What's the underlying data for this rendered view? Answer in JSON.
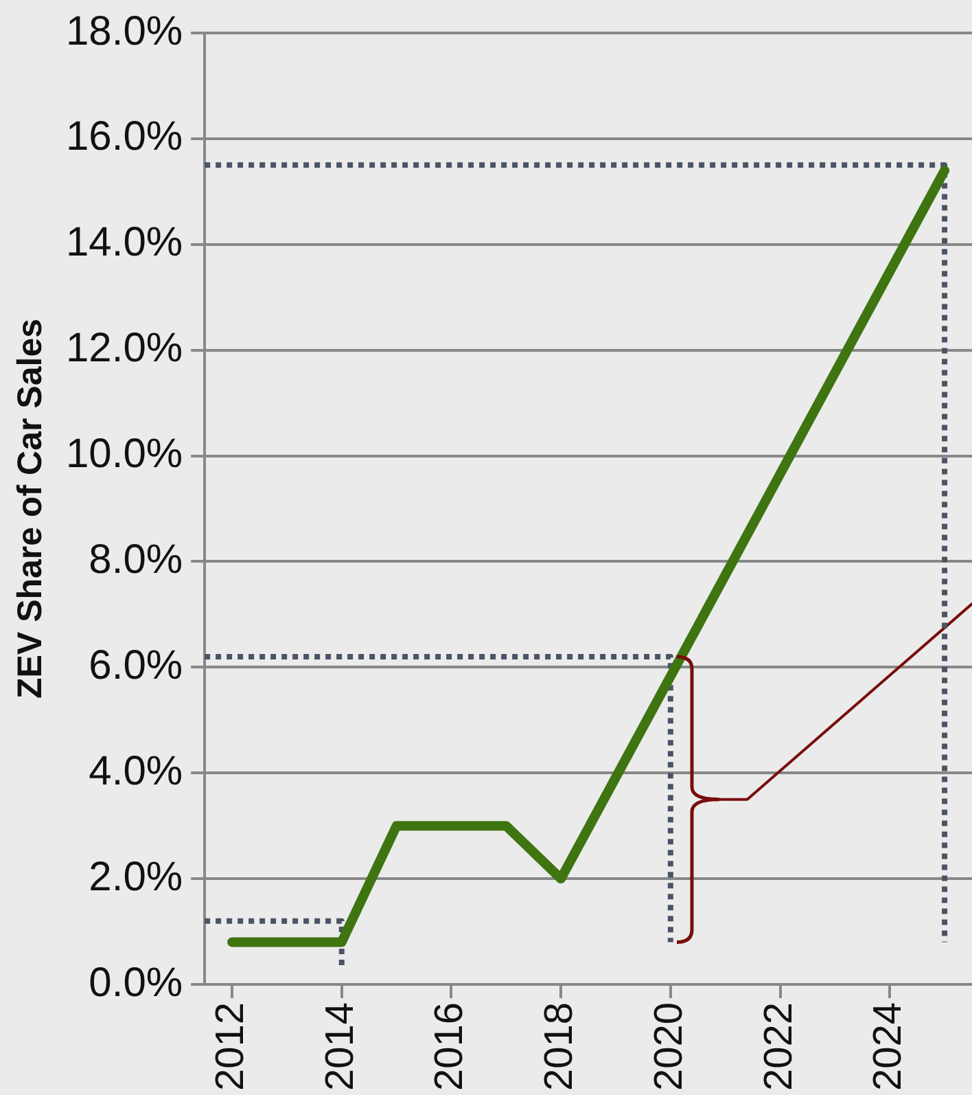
{
  "chart_data": {
    "type": "line",
    "ylabel": "ZEV Share of Car Sales",
    "series": [
      {
        "color": "#3e7510",
        "x": [
          2012,
          2014,
          2015,
          2017,
          2018,
          2025
        ],
        "values": [
          0.8,
          0.8,
          3.0,
          3.0,
          2.0,
          15.4
        ]
      },
      {
        "color": "#4a5466",
        "line_style": "dotted",
        "x": [
          2011.5,
          2014,
          2014
        ],
        "values": [
          1.2,
          1.2,
          0.3
        ]
      },
      {
        "color": "#4a5466",
        "line_style": "dotted",
        "x": [
          2011.5,
          2020,
          2020
        ],
        "values": [
          6.2,
          6.2,
          0.8
        ]
      },
      {
        "color": "#4a5466",
        "line_style": "dotted",
        "x": [
          2011.5,
          2025,
          2025
        ],
        "values": [
          15.5,
          15.5,
          0.8
        ]
      },
      {
        "color": "#7a0c0c",
        "x": [
          2020.9,
          2021.4,
          2025.5
        ],
        "values": [
          3.5,
          3.5,
          7.2
        ]
      }
    ],
    "xlim": [
      2011.5,
      2025.5
    ],
    "xticks": [
      2012,
      2014,
      2016,
      2018,
      2020,
      2022,
      2024
    ],
    "ylim": [
      0,
      18
    ],
    "yticks": [
      {
        "value": 0,
        "label": "0.0%"
      },
      {
        "value": 2,
        "label": "2.0%"
      },
      {
        "value": 4,
        "label": "4.0%"
      },
      {
        "value": 6,
        "label": "6.0%"
      },
      {
        "value": 8,
        "label": "8.0%"
      },
      {
        "value": 10,
        "label": "10.0%"
      },
      {
        "value": 12,
        "label": "12.0%"
      },
      {
        "value": 14,
        "label": "14.0%"
      },
      {
        "value": 16,
        "label": "16.0%"
      },
      {
        "value": 18,
        "label": "18.0%"
      }
    ],
    "grid": "y",
    "legend": false,
    "marker": "none"
  }
}
